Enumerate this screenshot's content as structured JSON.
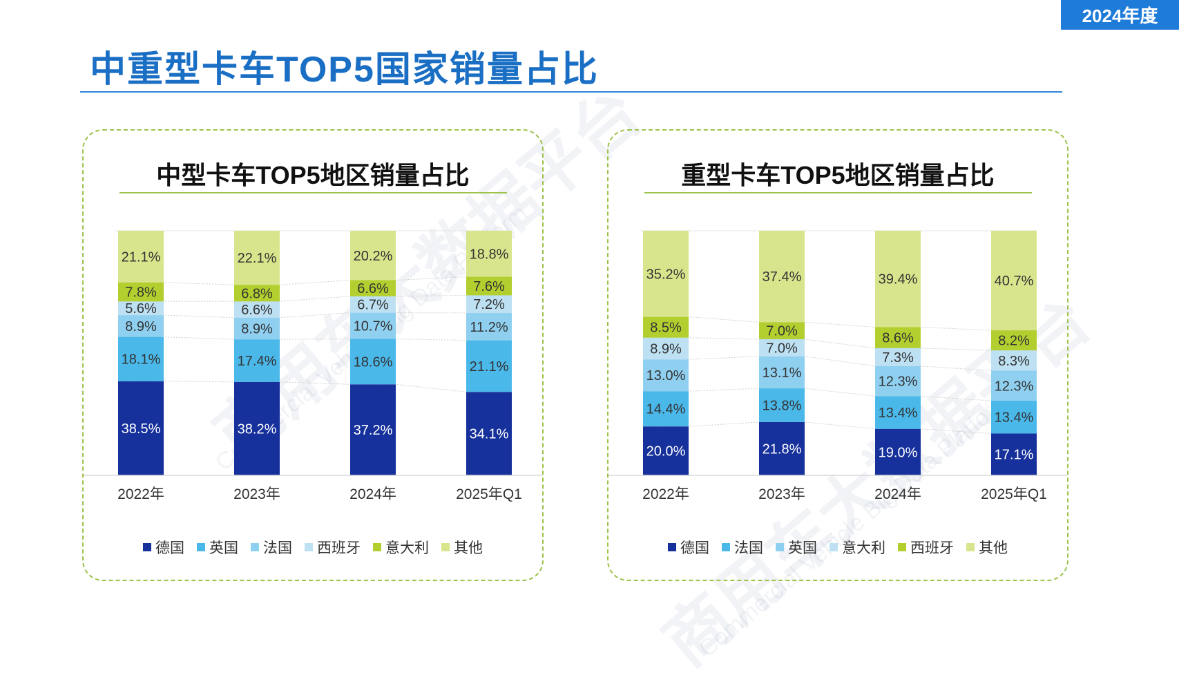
{
  "badge": "2024年度",
  "page_title": "中重型卡车TOP5国家销量占比",
  "watermark": {
    "zh": "商用车大数据平台",
    "en": "Commercial Vehicle Big Data Platform"
  },
  "chart_data": [
    {
      "type": "bar",
      "stacked": true,
      "title": "中型卡车TOP5地区销量占比",
      "categories": [
        "2022年",
        "2023年",
        "2024年",
        "2025年Q1"
      ],
      "ylim": [
        0,
        100
      ],
      "legend_position": "bottom",
      "series": [
        {
          "name": "德国",
          "color": "#17319c",
          "values": [
            38.5,
            38.2,
            37.2,
            34.1
          ],
          "labels": [
            "38.5%",
            "38.2%",
            "37.2%",
            "34.1%"
          ]
        },
        {
          "name": "英国",
          "color": "#4bb8ea",
          "values": [
            18.1,
            17.4,
            18.6,
            21.1
          ],
          "labels": [
            "18.1%",
            "17.4%",
            "18.6%",
            "21.1%"
          ]
        },
        {
          "name": "法国",
          "color": "#8fd0f1",
          "values": [
            8.9,
            8.9,
            10.7,
            11.2
          ],
          "labels": [
            "8.9%",
            "8.9%",
            "10.7%",
            "11.2%"
          ]
        },
        {
          "name": "西班牙",
          "color": "#bde0f3",
          "values": [
            5.6,
            6.6,
            6.7,
            7.2
          ],
          "labels": [
            "5.6%",
            "6.6%",
            "6.7%",
            "7.2%"
          ]
        },
        {
          "name": "意大利",
          "color": "#b2cf2f",
          "values": [
            7.8,
            6.8,
            6.6,
            7.6
          ],
          "labels": [
            "7.8%",
            "6.8%",
            "6.6%",
            "7.6%"
          ]
        },
        {
          "name": "其他",
          "color": "#d9e58c",
          "values": [
            21.1,
            22.1,
            20.2,
            18.8
          ],
          "labels": [
            "21.1%",
            "22.1%",
            "20.2%",
            "18.8%"
          ]
        }
      ]
    },
    {
      "type": "bar",
      "stacked": true,
      "title": "重型卡车TOP5地区销量占比",
      "categories": [
        "2022年",
        "2023年",
        "2024年",
        "2025年Q1"
      ],
      "ylim": [
        0,
        100
      ],
      "legend_position": "bottom",
      "series": [
        {
          "name": "德国",
          "color": "#17319c",
          "values": [
            20.0,
            21.8,
            19.0,
            17.1
          ],
          "labels": [
            "20.0%",
            "21.8%",
            "19.0%",
            "17.1%"
          ]
        },
        {
          "name": "法国",
          "color": "#4bb8ea",
          "values": [
            14.4,
            13.8,
            13.4,
            13.4
          ],
          "labels": [
            "14.4%",
            "13.8%",
            "13.4%",
            "13.4%"
          ]
        },
        {
          "name": "英国",
          "color": "#8fd0f1",
          "values": [
            13.0,
            13.1,
            12.3,
            12.3
          ],
          "labels": [
            "13.0%",
            "13.1%",
            "12.3%",
            "12.3%"
          ]
        },
        {
          "name": "意大利",
          "color": "#bde0f3",
          "values": [
            8.9,
            7.0,
            7.3,
            8.3
          ],
          "labels": [
            "8.9%",
            "7.0%",
            "7.3%",
            "8.3%"
          ]
        },
        {
          "name": "西班牙",
          "color": "#b2cf2f",
          "values": [
            8.5,
            7.0,
            8.6,
            8.2
          ],
          "labels": [
            "8.5%",
            "7.0%",
            "8.6%",
            "8.2%"
          ]
        },
        {
          "name": "其他",
          "color": "#d9e58c",
          "values": [
            35.2,
            37.4,
            39.4,
            40.7
          ],
          "labels": [
            "35.2%",
            "37.4%",
            "39.4%",
            "40.7%"
          ]
        }
      ]
    }
  ]
}
